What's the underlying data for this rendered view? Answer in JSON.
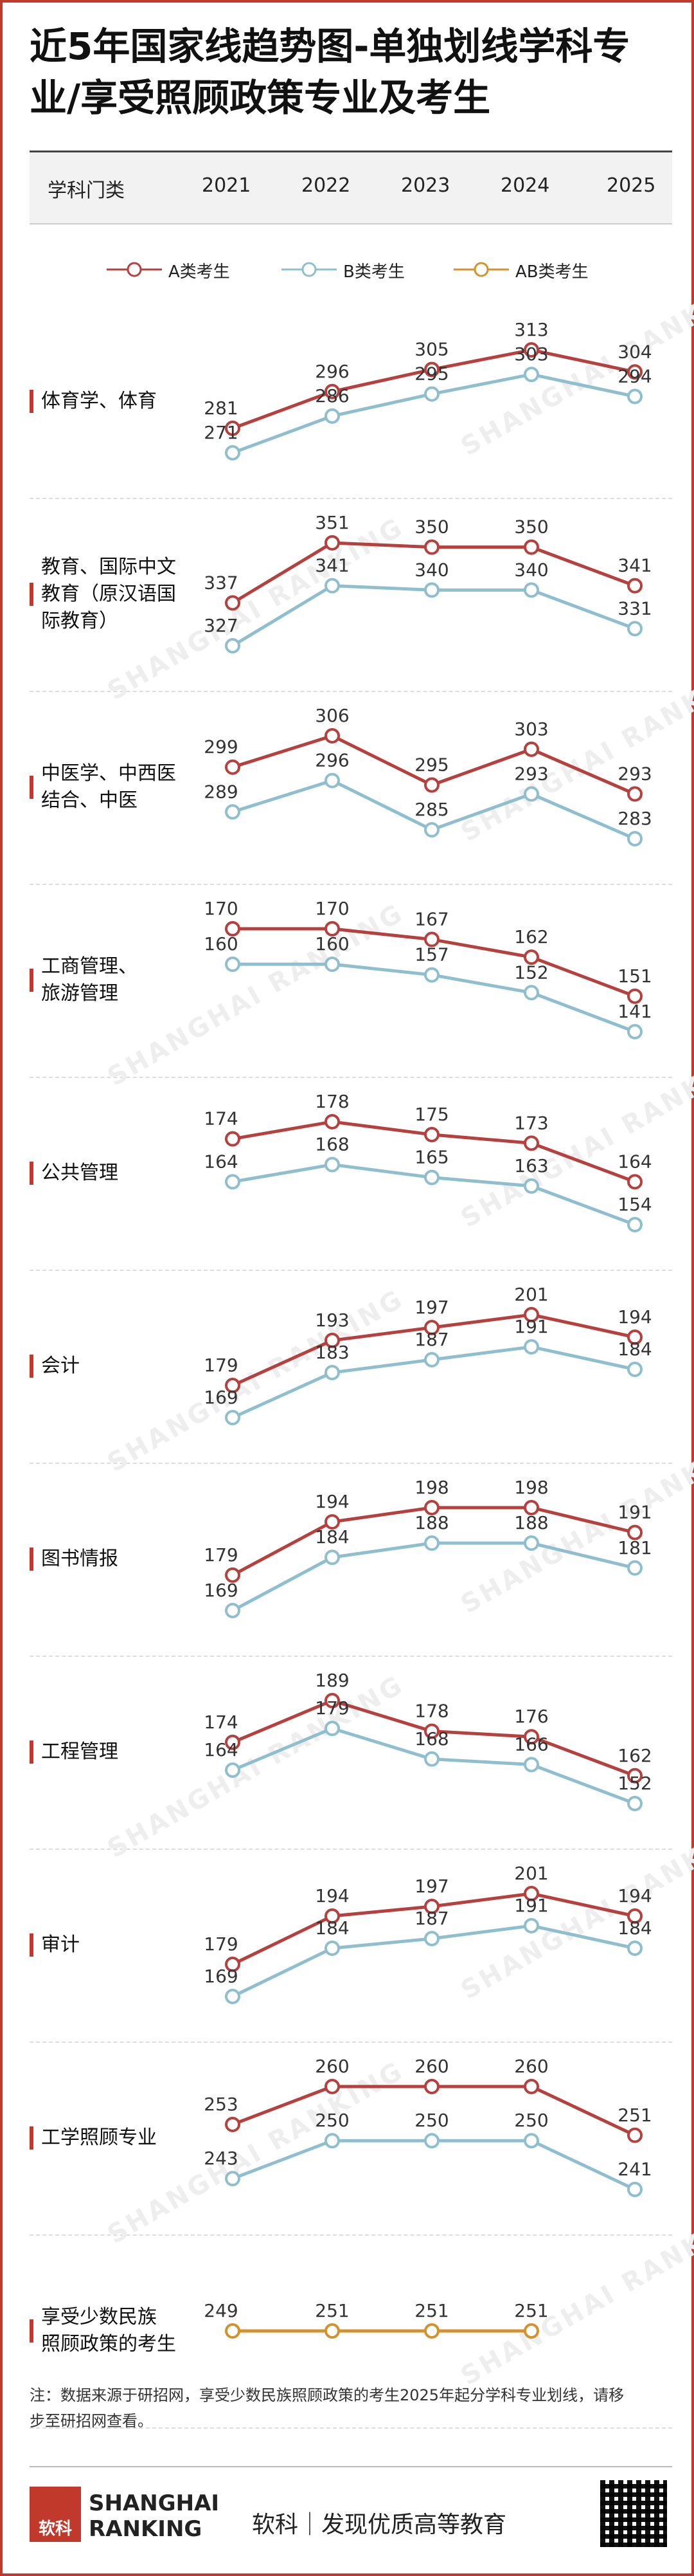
{
  "title": {
    "line1": "近5年国家线趋势图-单独划线学科专",
    "line2": "业/享受照顾政策专业及考生"
  },
  "header": {
    "col_label": "学科门类",
    "years": [
      "2021",
      "2022",
      "2023",
      "2024",
      "2025"
    ]
  },
  "legend": [
    {
      "label": "A类考生",
      "color": "#b5403d"
    },
    {
      "label": "B类考生",
      "color": "#8fbfcf"
    },
    {
      "label": "AB类考生",
      "color": "#d4922e"
    }
  ],
  "chart_data": {
    "type": "line",
    "x": [
      "2021",
      "2022",
      "2023",
      "2024",
      "2025"
    ],
    "rows": [
      {
        "label_lines": [
          "体育学、体育"
        ],
        "series": [
          {
            "name": "A类考生",
            "values": [
              281,
              296,
              305,
              313,
              304
            ]
          },
          {
            "name": "B类考生",
            "values": [
              271,
              286,
              295,
              303,
              294
            ]
          }
        ]
      },
      {
        "label_lines": [
          "教育、国际中文",
          "教育（原汉语国",
          "际教育）"
        ],
        "series": [
          {
            "name": "A类考生",
            "values": [
              337,
              351,
              350,
              350,
              341
            ]
          },
          {
            "name": "B类考生",
            "values": [
              327,
              341,
              340,
              340,
              331
            ]
          }
        ]
      },
      {
        "label_lines": [
          "中医学、中西医",
          "结合、中医"
        ],
        "series": [
          {
            "name": "A类考生",
            "values": [
              299,
              306,
              295,
              303,
              293
            ]
          },
          {
            "name": "B类考生",
            "values": [
              289,
              296,
              285,
              293,
              283
            ]
          }
        ]
      },
      {
        "label_lines": [
          "工商管理、",
          "旅游管理"
        ],
        "series": [
          {
            "name": "A类考生",
            "values": [
              170,
              170,
              167,
              162,
              151
            ]
          },
          {
            "name": "B类考生",
            "values": [
              160,
              160,
              157,
              152,
              141
            ]
          }
        ]
      },
      {
        "label_lines": [
          "公共管理"
        ],
        "series": [
          {
            "name": "A类考生",
            "values": [
              174,
              178,
              175,
              173,
              164
            ]
          },
          {
            "name": "B类考生",
            "values": [
              164,
              168,
              165,
              163,
              154
            ]
          }
        ]
      },
      {
        "label_lines": [
          "会计"
        ],
        "series": [
          {
            "name": "A类考生",
            "values": [
              179,
              193,
              197,
              201,
              194
            ]
          },
          {
            "name": "B类考生",
            "values": [
              169,
              183,
              187,
              191,
              184
            ]
          }
        ]
      },
      {
        "label_lines": [
          "图书情报"
        ],
        "series": [
          {
            "name": "A类考生",
            "values": [
              179,
              194,
              198,
              198,
              191
            ]
          },
          {
            "name": "B类考生",
            "values": [
              169,
              184,
              188,
              188,
              181
            ]
          }
        ]
      },
      {
        "label_lines": [
          "工程管理"
        ],
        "series": [
          {
            "name": "A类考生",
            "values": [
              174,
              189,
              178,
              176,
              162
            ]
          },
          {
            "name": "B类考生",
            "values": [
              164,
              179,
              168,
              166,
              152
            ]
          }
        ]
      },
      {
        "label_lines": [
          "审计"
        ],
        "series": [
          {
            "name": "A类考生",
            "values": [
              179,
              194,
              197,
              201,
              194
            ]
          },
          {
            "name": "B类考生",
            "values": [
              169,
              184,
              187,
              191,
              184
            ]
          }
        ]
      },
      {
        "label_lines": [
          "工学照顾专业"
        ],
        "series": [
          {
            "name": "A类考生",
            "values": [
              253,
              260,
              260,
              260,
              251
            ]
          },
          {
            "name": "B类考生",
            "values": [
              243,
              250,
              250,
              250,
              241
            ]
          }
        ]
      },
      {
        "label_lines": [
          "享受少数民族",
          "照顾政策的考生"
        ],
        "series": [
          {
            "name": "AB类考生",
            "values": [
              249,
              251,
              251,
              251,
              null
            ]
          }
        ]
      }
    ]
  },
  "watermark": "SHANGHAI RANKING",
  "note": {
    "line1": "注：数据来源于研招网，享受少数民族照顾政策的考生2025年起分学科专业划线，请移",
    "line2": "步至研招网查看。"
  },
  "footer": {
    "logo_cn": "软科",
    "logo_en_1": "SHANGHAI",
    "logo_en_2": "RANKING",
    "slogan": "软科｜发现优质高等教育"
  }
}
